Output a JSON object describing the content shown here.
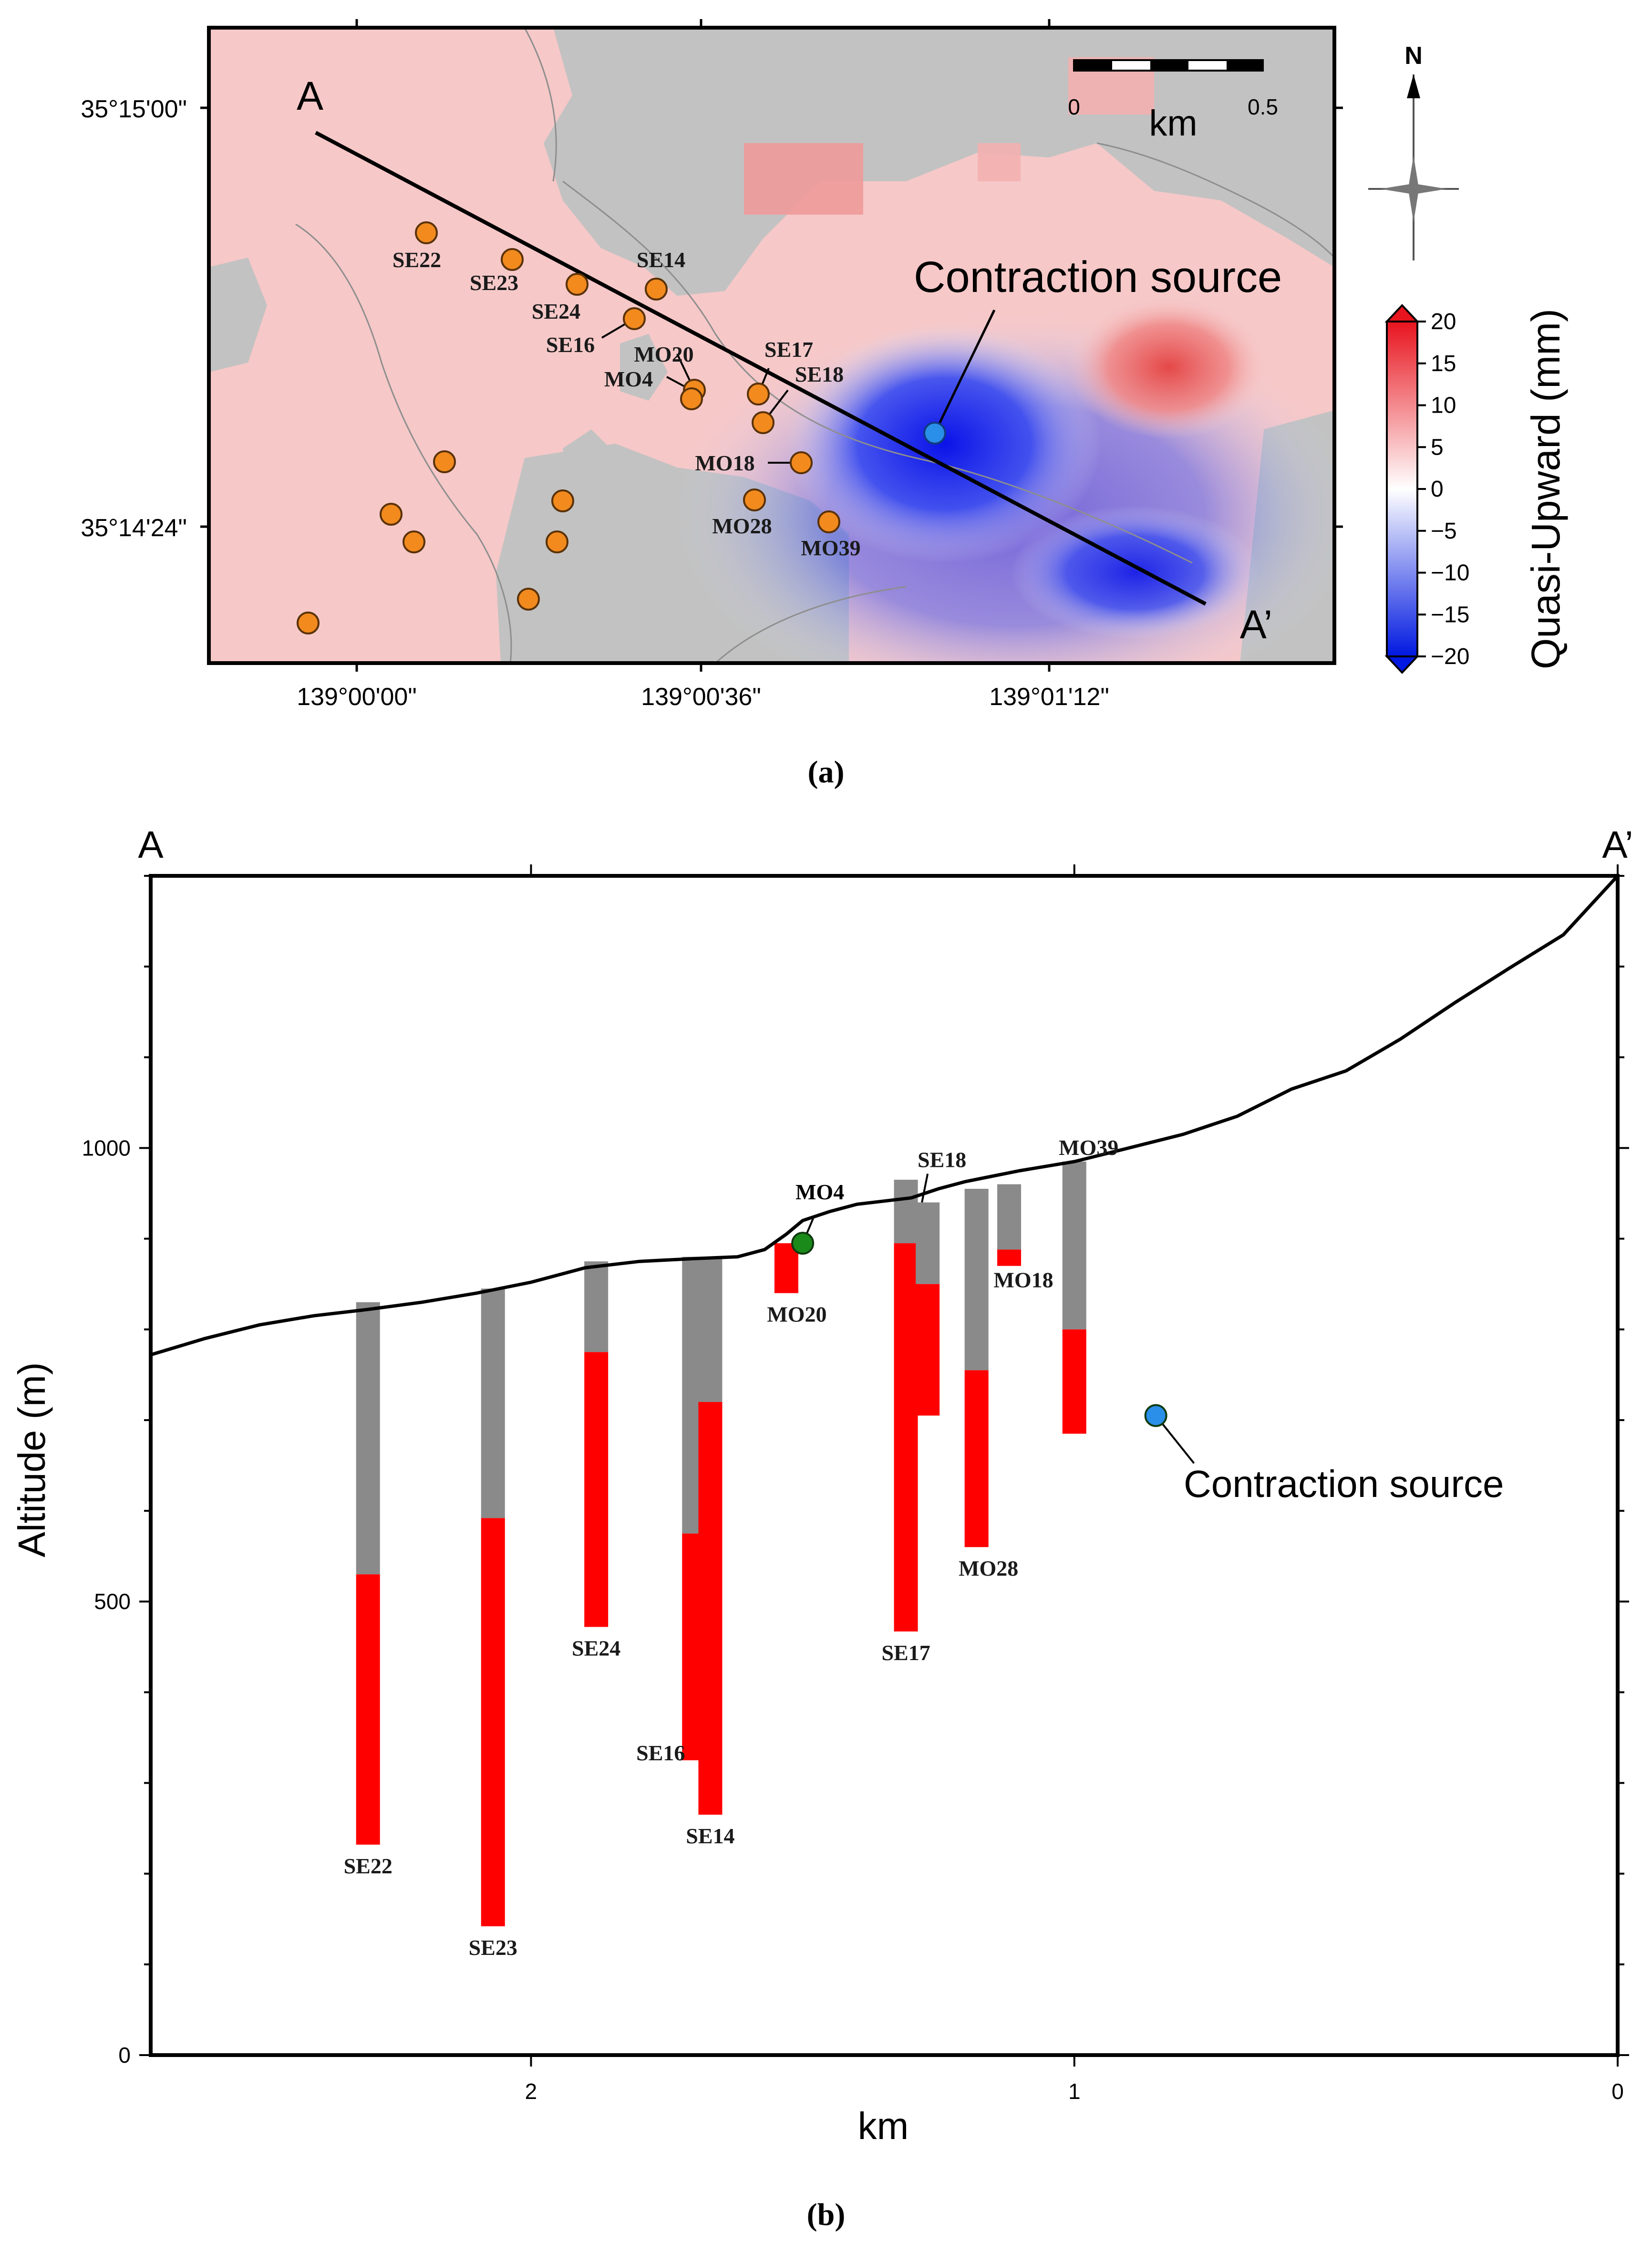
{
  "panel_a": {
    "label_letter": "a",
    "profile_start": "A",
    "profile_end": "A’",
    "lat_ticks": [
      "35°15'00\"",
      "35°14'24\""
    ],
    "lon_ticks": [
      "139°00'00\"",
      "139°00'36\"",
      "139°01'12\""
    ],
    "scalebar": {
      "start": "0",
      "end": "0.5",
      "unit": "km"
    },
    "north_label": "N",
    "source_label": "Contraction source",
    "colorbar": {
      "title": "Quasi-Upward (mm)",
      "ticks": [
        "20",
        "15",
        "10",
        "5",
        "0",
        "−5",
        "−10",
        "−15",
        "−20"
      ],
      "max": 20,
      "min": -20,
      "color_high": "#e8141e",
      "color_mid": "#ffffff",
      "color_low": "#0018e0"
    },
    "stations": [
      "SE22",
      "SE23",
      "SE24",
      "SE14",
      "SE16",
      "MO20",
      "MO4",
      "SE17",
      "SE18",
      "MO18",
      "MO28",
      "MO39"
    ],
    "colors": {
      "station": "#f28a1e",
      "source": "#2a8fe8",
      "mask": "#c2c2c2",
      "uplift": "#f6c6c6",
      "subsidence": "#1020e0"
    }
  },
  "panel_b": {
    "label_letter": "b",
    "profile_start": "A",
    "profile_end": "A’",
    "xlabel": "km",
    "ylabel": "Altitude (m)",
    "source_label": "Contraction source",
    "chart_data": {
      "type": "bar",
      "title": "",
      "xlabel": "km",
      "ylabel": "Altitude (m)",
      "xlim": [
        2.7,
        0
      ],
      "ylim": [
        0,
        1300
      ],
      "x_ticks": [
        "2",
        "1",
        "0"
      ],
      "y_ticks": [
        "0",
        "500",
        "1000"
      ],
      "series": [
        {
          "name": "Casing (grey)",
          "color": "#8a8a8a"
        },
        {
          "name": "Strainer (red)",
          "color": "#ff0000"
        }
      ],
      "wells": [
        {
          "name": "SE22",
          "x": 2.3,
          "top": 830,
          "strainer_top": 530,
          "bottom": 232
        },
        {
          "name": "SE23",
          "x": 2.07,
          "top": 845,
          "strainer_top": 592,
          "bottom": 142
        },
        {
          "name": "SE24",
          "x": 1.88,
          "top": 875,
          "strainer_top": 775,
          "bottom": 472
        },
        {
          "name": "SE16",
          "x": 1.7,
          "top": 880,
          "strainer_top": 575,
          "bottom": 325
        },
        {
          "name": "SE14",
          "x": 1.67,
          "top": 880,
          "strainer_top": 720,
          "bottom": 265
        },
        {
          "name": "MO20",
          "x": 1.53,
          "top": 895,
          "strainer_top": 895,
          "bottom": 840
        },
        {
          "name": "SE17",
          "x": 1.31,
          "top": 965,
          "strainer_top": 895,
          "bottom": 467
        },
        {
          "name": "SE18",
          "x": 1.27,
          "top": 940,
          "strainer_top": 850,
          "bottom": 705
        },
        {
          "name": "MO28",
          "x": 1.18,
          "top": 955,
          "strainer_top": 755,
          "bottom": 560
        },
        {
          "name": "MO18",
          "x": 1.12,
          "top": 960,
          "strainer_top": 888,
          "bottom": 870
        },
        {
          "name": "MO39",
          "x": 1.0,
          "top": 985,
          "strainer_top": 800,
          "bottom": 685
        }
      ],
      "points": [
        {
          "name": "MO4",
          "x": 1.5,
          "y": 895,
          "color": "#1a8a1a"
        },
        {
          "name": "Contraction source",
          "x": 0.85,
          "y": 705,
          "color": "#2a8fe8"
        }
      ],
      "topography": [
        [
          2.7,
          772
        ],
        [
          2.6,
          790
        ],
        [
          2.5,
          805
        ],
        [
          2.4,
          815
        ],
        [
          2.3,
          822
        ],
        [
          2.2,
          830
        ],
        [
          2.1,
          840
        ],
        [
          2.0,
          852
        ],
        [
          1.9,
          868
        ],
        [
          1.8,
          875
        ],
        [
          1.7,
          878
        ],
        [
          1.62,
          880
        ],
        [
          1.57,
          888
        ],
        [
          1.53,
          905
        ],
        [
          1.5,
          920
        ],
        [
          1.45,
          930
        ],
        [
          1.4,
          938
        ],
        [
          1.3,
          945
        ],
        [
          1.25,
          955
        ],
        [
          1.2,
          963
        ],
        [
          1.1,
          975
        ],
        [
          1.0,
          985
        ],
        [
          0.9,
          1000
        ],
        [
          0.8,
          1015
        ],
        [
          0.7,
          1035
        ],
        [
          0.6,
          1065
        ],
        [
          0.5,
          1085
        ],
        [
          0.4,
          1120
        ],
        [
          0.3,
          1160
        ],
        [
          0.2,
          1198
        ],
        [
          0.1,
          1235
        ],
        [
          0.0,
          1300
        ]
      ]
    }
  }
}
